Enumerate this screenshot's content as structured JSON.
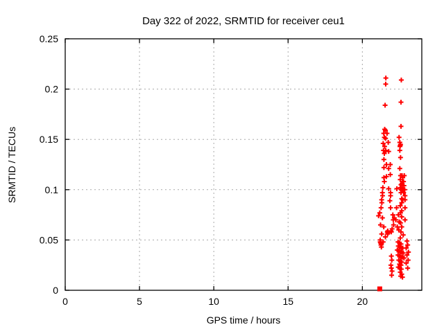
{
  "chart_data": {
    "type": "scatter",
    "title": "Day 322 of 2022, SRMTID for receiver ceu1",
    "xlabel": "GPS time / hours",
    "ylabel": "SRMTID / TECUs",
    "xlim": [
      0,
      24
    ],
    "ylim": [
      0,
      0.25
    ],
    "x_ticks": [
      0,
      5,
      10,
      15,
      20
    ],
    "x_tick_labels": [
      "0",
      "5",
      "10",
      "15",
      "20"
    ],
    "y_ticks": [
      0,
      0.05,
      0.1,
      0.15,
      0.2,
      0.25
    ],
    "y_tick_labels": [
      "0",
      "0.05",
      "0.1",
      "0.15",
      "0.2",
      "0.25"
    ],
    "grid": true,
    "legend": "none",
    "marker": "plus",
    "marker_color": "#ff0000",
    "grid_color": "#a8a8a8",
    "border_color": "#000000",
    "series": [
      {
        "name": "SRMTID",
        "points": [
          [
            21.58,
            0.211
          ],
          [
            21.57,
            0.205
          ],
          [
            21.53,
            0.184
          ],
          [
            22.62,
            0.209
          ],
          [
            22.6,
            0.187
          ],
          [
            22.6,
            0.163
          ],
          [
            21.5,
            0.16
          ],
          [
            21.55,
            0.159
          ],
          [
            21.44,
            0.156
          ],
          [
            21.66,
            0.156
          ],
          [
            21.48,
            0.152
          ],
          [
            21.56,
            0.151
          ],
          [
            21.4,
            0.146
          ],
          [
            21.74,
            0.147
          ],
          [
            21.5,
            0.143
          ],
          [
            21.42,
            0.139
          ],
          [
            21.57,
            0.139
          ],
          [
            21.77,
            0.138
          ],
          [
            21.48,
            0.136
          ],
          [
            21.45,
            0.13
          ],
          [
            21.62,
            0.125
          ],
          [
            21.88,
            0.125
          ],
          [
            21.45,
            0.122
          ],
          [
            21.77,
            0.121
          ],
          [
            21.88,
            0.115
          ],
          [
            21.62,
            0.113
          ],
          [
            21.45,
            0.112
          ],
          [
            21.48,
            0.108
          ],
          [
            21.38,
            0.102
          ],
          [
            21.77,
            0.101
          ],
          [
            22.32,
            0.101
          ],
          [
            21.35,
            0.097
          ],
          [
            21.36,
            0.094
          ],
          [
            21.3,
            0.09
          ],
          [
            21.31,
            0.087
          ],
          [
            21.26,
            0.082
          ],
          [
            21.17,
            0.077
          ],
          [
            21.09,
            0.074
          ],
          [
            21.35,
            0.072
          ],
          [
            21.22,
            0.065
          ],
          [
            21.44,
            0.063
          ],
          [
            21.3,
            0.056
          ],
          [
            21.2,
            0.05
          ],
          [
            21.4,
            0.048
          ],
          [
            21.28,
            0.046
          ],
          [
            21.55,
            0.053
          ],
          [
            21.68,
            0.058
          ],
          [
            21.7,
            0.056
          ],
          [
            21.72,
            0.057
          ],
          [
            21.71,
            0.059
          ],
          [
            21.93,
            0.059
          ],
          [
            21.95,
            0.058
          ],
          [
            21.2,
            0.048
          ],
          [
            21.23,
            0.047
          ],
          [
            21.25,
            0.045
          ],
          [
            21.28,
            0.043
          ],
          [
            21.9,
            0.097
          ],
          [
            21.9,
            0.094
          ],
          [
            21.85,
            0.089
          ],
          [
            21.9,
            0.082
          ],
          [
            22.05,
            0.075
          ],
          [
            22.08,
            0.07
          ],
          [
            22.15,
            0.072
          ],
          [
            22.25,
            0.07
          ],
          [
            22.3,
            0.082
          ],
          [
            22.1,
            0.065
          ],
          [
            22.35,
            0.063
          ],
          [
            22.0,
            0.061
          ],
          [
            22.42,
            0.075
          ],
          [
            22.48,
            0.068
          ],
          [
            22.47,
            0.152
          ],
          [
            22.52,
            0.147
          ],
          [
            22.57,
            0.145
          ],
          [
            22.53,
            0.143
          ],
          [
            22.52,
            0.139
          ],
          [
            22.57,
            0.132
          ],
          [
            22.52,
            0.121
          ],
          [
            22.67,
            0.114
          ],
          [
            22.72,
            0.112
          ],
          [
            22.77,
            0.108
          ],
          [
            22.67,
            0.106
          ],
          [
            22.55,
            0.144
          ],
          [
            22.57,
            0.114
          ],
          [
            22.82,
            0.114
          ],
          [
            22.55,
            0.11
          ],
          [
            22.7,
            0.108
          ],
          [
            22.6,
            0.105
          ],
          [
            22.8,
            0.104
          ],
          [
            22.55,
            0.102
          ],
          [
            22.7,
            0.101
          ],
          [
            22.62,
            0.1
          ],
          [
            22.75,
            0.1
          ],
          [
            22.85,
            0.1
          ],
          [
            22.68,
            0.099
          ],
          [
            22.6,
            0.097
          ],
          [
            22.78,
            0.097
          ],
          [
            22.87,
            0.094
          ],
          [
            22.65,
            0.091
          ],
          [
            22.72,
            0.09
          ],
          [
            22.87,
            0.09
          ],
          [
            22.65,
            0.087
          ],
          [
            22.55,
            0.084
          ],
          [
            22.87,
            0.082
          ],
          [
            22.65,
            0.079
          ],
          [
            22.57,
            0.077
          ],
          [
            22.65,
            0.073
          ],
          [
            22.87,
            0.07
          ],
          [
            22.57,
            0.067
          ],
          [
            22.65,
            0.063
          ],
          [
            22.45,
            0.06
          ],
          [
            22.6,
            0.058
          ],
          [
            22.75,
            0.055
          ],
          [
            22.55,
            0.052
          ],
          [
            22.4,
            0.048
          ],
          [
            22.5,
            0.047
          ],
          [
            22.6,
            0.046
          ],
          [
            22.42,
            0.044
          ],
          [
            22.52,
            0.043
          ],
          [
            22.62,
            0.042
          ],
          [
            22.72,
            0.042
          ],
          [
            22.35,
            0.04
          ],
          [
            22.45,
            0.039
          ],
          [
            22.55,
            0.038
          ],
          [
            22.65,
            0.038
          ],
          [
            22.75,
            0.037
          ],
          [
            22.4,
            0.035
          ],
          [
            22.5,
            0.034
          ],
          [
            22.6,
            0.033
          ],
          [
            22.7,
            0.033
          ],
          [
            22.8,
            0.032
          ],
          [
            22.45,
            0.03
          ],
          [
            22.55,
            0.029
          ],
          [
            22.65,
            0.028
          ],
          [
            22.5,
            0.026
          ],
          [
            22.6,
            0.025
          ],
          [
            22.42,
            0.023
          ],
          [
            22.52,
            0.022
          ],
          [
            22.62,
            0.021
          ],
          [
            22.55,
            0.018
          ],
          [
            22.65,
            0.016
          ],
          [
            22.58,
            0.014
          ],
          [
            22.7,
            0.013
          ],
          [
            23.0,
            0.049
          ],
          [
            23.05,
            0.045
          ],
          [
            22.95,
            0.042
          ],
          [
            23.1,
            0.038
          ],
          [
            23.0,
            0.035
          ],
          [
            23.08,
            0.03
          ],
          [
            22.95,
            0.027
          ],
          [
            23.05,
            0.022
          ],
          [
            21.95,
            0.034
          ],
          [
            21.98,
            0.03
          ],
          [
            21.92,
            0.025
          ],
          [
            21.95,
            0.022
          ],
          [
            22.0,
            0.019
          ],
          [
            21.97,
            0.015
          ]
        ]
      }
    ],
    "zero_marker": {
      "point": [
        21.17,
        0
      ],
      "style": "filled-square"
    }
  }
}
